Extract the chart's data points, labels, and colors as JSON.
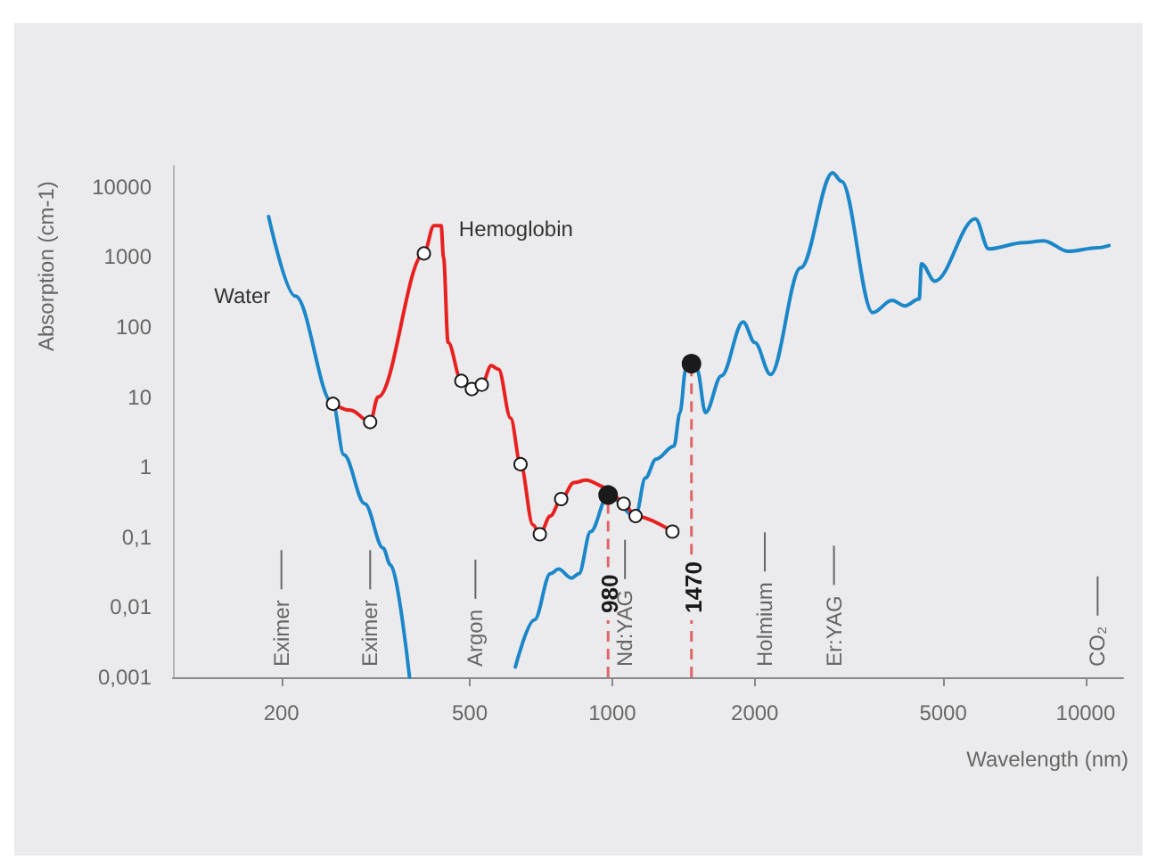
{
  "chart_data": {
    "type": "line",
    "xlabel": "Wavelength (nm)",
    "ylabel": "Absorption (cm-1)",
    "log": "xy",
    "xlim": [
      118,
      12000
    ],
    "ylim": [
      0.001,
      20000
    ],
    "xticks": [
      200,
      500,
      1000,
      2000,
      5000,
      10000
    ],
    "yticks": [
      {
        "value": 0.001,
        "label": "0,001"
      },
      {
        "value": 0.01,
        "label": "0,01"
      },
      {
        "value": 0.1,
        "label": "0,1"
      },
      1,
      10,
      100,
      1000,
      10000
    ],
    "series": [
      {
        "name": "Water",
        "color": "#1b87c9",
        "x": [
          188,
          214,
          257,
          271,
          300,
          328,
          340,
          373,
          500,
          624,
          685,
          740,
          770,
          820,
          850,
          900,
          980,
          1120,
          1175,
          1237,
          1350,
          1390,
          1430,
          1470,
          1510,
          1574,
          1700,
          1890,
          2000,
          2160,
          2500,
          2920,
          3050,
          3550,
          3900,
          4150,
          4450,
          4500,
          4800,
          5850,
          6240,
          7400,
          8150,
          9200,
          10600,
          11200
        ],
        "values": [
          3760,
          275,
          8,
          1.5,
          0.3,
          0.07,
          0.04,
          0.001,
          null,
          0.0014,
          0.0066,
          0.03,
          0.035,
          0.026,
          0.03,
          0.12,
          0.4,
          0.2,
          0.7,
          1.3,
          2,
          6,
          25,
          30,
          25,
          6,
          20,
          118,
          60,
          21,
          700,
          15800,
          12000,
          160,
          240,
          200,
          250,
          800,
          450,
          3500,
          1300,
          1600,
          1700,
          1200,
          1350,
          1450
        ]
      },
      {
        "name": "Hemoglobin",
        "color": "#e8201f",
        "x": [
          257,
          280,
          308,
          320,
          400,
          420,
          435,
          440,
          450,
          480,
          505,
          530,
          555,
          575,
          610,
          640,
          680,
          703,
          740,
          780,
          830,
          880,
          980,
          1057,
          1120,
          1340
        ],
        "values": [
          8,
          6.5,
          4.4,
          10,
          1120,
          2800,
          2800,
          1000,
          60,
          17,
          13,
          15,
          28,
          25,
          5,
          1.1,
          0.15,
          0.11,
          0.2,
          0.35,
          0.6,
          0.65,
          0.5,
          0.3,
          0.2,
          0.12
        ]
      },
      {
        "type": "scatter",
        "marker": "circle",
        "color": "#ffffff",
        "x": [
          257,
          308,
          400,
          480,
          505,
          530,
          640,
          703,
          780,
          1057,
          1120,
          1340
        ],
        "values": [
          8,
          4.4,
          1120,
          17,
          13,
          15,
          1.1,
          0.11,
          0.35,
          0.3,
          0.2,
          0.12
        ]
      },
      {
        "type": "scatter",
        "marker": "circle",
        "color": "#1a1a1a",
        "x": [
          980,
          1470
        ],
        "values": [
          0.4,
          30
        ]
      }
    ],
    "ref_lines": [
      {
        "axis": "x",
        "value": 200,
        "label": "Eximer",
        "color": "#666666",
        "line_style": "solid"
      },
      {
        "axis": "x",
        "value": 308,
        "label": "Eximer",
        "color": "#666666",
        "line_style": "solid"
      },
      {
        "axis": "x",
        "value": 514,
        "label": "Argon",
        "color": "#666666",
        "line_style": "solid"
      },
      {
        "axis": "x",
        "value": 980,
        "label": "980",
        "color": "#e06666",
        "line_style": "dashed"
      },
      {
        "axis": "x",
        "value": 1064,
        "label": "Nd:YAG",
        "color": "#666666",
        "line_style": "solid"
      },
      {
        "axis": "x",
        "value": 1470,
        "label": "1470",
        "color": "#e06666",
        "line_style": "dashed"
      },
      {
        "axis": "x",
        "value": 2100,
        "label": "Holmium",
        "color": "#666666",
        "line_style": "solid"
      },
      {
        "axis": "x",
        "value": 2940,
        "label": "Er:YAG",
        "color": "#666666",
        "line_style": "solid"
      },
      {
        "axis": "x",
        "value": 10600,
        "label": "CO₂",
        "color": "#666666",
        "line_style": "solid"
      }
    ]
  }
}
